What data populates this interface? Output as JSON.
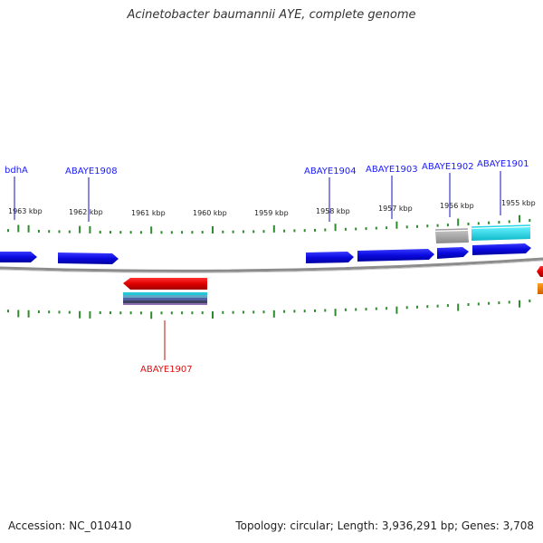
{
  "title": "Acinetobacter baumannii AYE, complete genome",
  "footer": {
    "accession": "Accession: NC_010410",
    "stats": "Topology: circular; Length: 3,936,291 bp; Genes: 3,708"
  },
  "ticks": [
    "1963 kbp",
    "1962 kbp",
    "1961 kbp",
    "1960 kbp",
    "1959 kbp",
    "1958 kbp",
    "1957 kbp",
    "1956 kbp",
    "1955 kbp"
  ],
  "genes_forward": [
    {
      "label": "bdhA",
      "color": "#1a1aff"
    },
    {
      "label": "ABAYE1908",
      "color": "#1a1aff"
    },
    {
      "label": "ABAYE1904",
      "color": "#1a1aff"
    },
    {
      "label": "ABAYE1903",
      "color": "#1a1aff"
    },
    {
      "label": "ABAYE1902",
      "color": "#1a1aff"
    },
    {
      "label": "ABAYE1901",
      "color": "#1a1aff"
    }
  ],
  "genes_reverse": [
    {
      "label": "ABAYE1907",
      "color": "#e01010"
    }
  ],
  "colors": {
    "backbone": "#8c8c8c",
    "tick": "#2e8b2e",
    "forward_gene": "#1010e0",
    "reverse_gene": "#e00000",
    "cds_cyan": "#22d8e8",
    "cds_gray": "#a8a8a8",
    "cds_orange": "#f08a00"
  }
}
